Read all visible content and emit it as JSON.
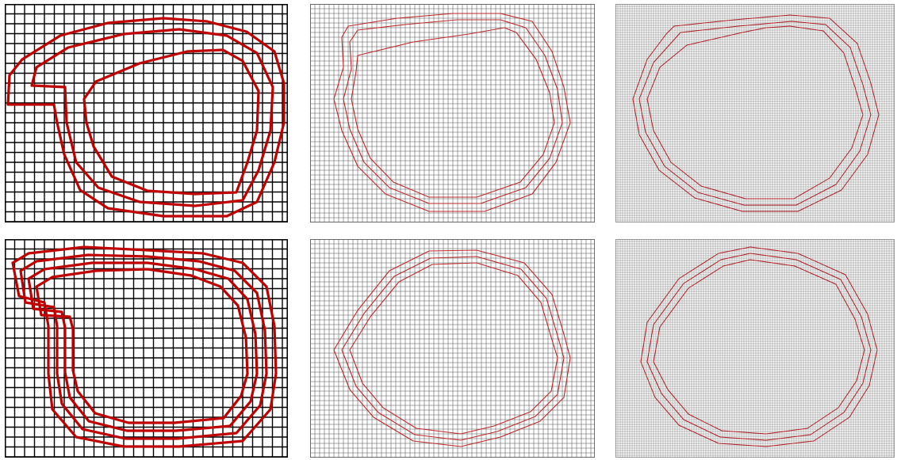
{
  "figure": {
    "layout": {
      "rows": 2,
      "columns": 3
    },
    "panels": [
      {
        "id": "p1",
        "grid": "coarse",
        "curve_color": "#c00000",
        "curves": 3,
        "shape": "notched"
      },
      {
        "id": "p2",
        "grid": "medium",
        "curve_color": "#c0282a",
        "curves": 3,
        "shape": "notched"
      },
      {
        "id": "p3",
        "grid": "fine",
        "curve_color": "#b01e24",
        "curves": 3,
        "shape": "notched-small"
      },
      {
        "id": "p4",
        "grid": "coarse",
        "curve_color": "#c00000",
        "curves": 4,
        "shape": "notched"
      },
      {
        "id": "p5",
        "grid": "medium",
        "curve_color": "#c0282a",
        "curves": 3,
        "shape": "round"
      },
      {
        "id": "p6",
        "grid": "fine",
        "curve_color": "#b01e24",
        "curves": 3,
        "shape": "round"
      }
    ],
    "colors": {
      "grid_coarse": "#000000",
      "grid_medium": "#555555",
      "grid_fine": "#777777",
      "background": "#ffffff"
    }
  }
}
